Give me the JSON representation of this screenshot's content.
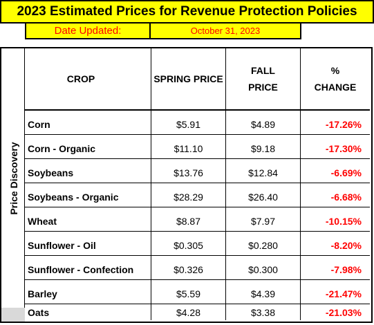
{
  "title": "2023 Estimated Prices for Revenue Protection Policies",
  "date_label": "Date Updated:",
  "date_value": "October 31, 2023",
  "side_label": "Price Discovery",
  "headers": {
    "crop": "CROP",
    "spring": "SPRING PRICE",
    "fall_line1": "FALL",
    "fall_line2": "PRICE",
    "change_line1": "%",
    "change_line2": "CHANGE"
  },
  "rows": [
    {
      "crop": "Corn",
      "spring": "$5.91",
      "fall": "$4.89",
      "change": "-17.26%"
    },
    {
      "crop": "Corn - Organic",
      "spring": "$11.10",
      "fall": "$9.18",
      "change": "-17.30%"
    },
    {
      "crop": "Soybeans",
      "spring": "$13.76",
      "fall": "$12.84",
      "change": "-6.69%"
    },
    {
      "crop": "Soybeans - Organic",
      "spring": "$28.29",
      "fall": "$26.40",
      "change": "-6.68%"
    },
    {
      "crop": "Wheat",
      "spring": "$8.87",
      "fall": "$7.97",
      "change": "-10.15%"
    },
    {
      "crop": "Sunflower - Oil",
      "spring": "$0.305",
      "fall": "$0.280",
      "change": "-8.20%"
    },
    {
      "crop": "Sunflower - Confection",
      "spring": "$0.326",
      "fall": "$0.300",
      "change": "-7.98%"
    },
    {
      "crop": "Barley",
      "spring": "$5.59",
      "fall": "$4.39",
      "change": "-21.47%"
    },
    {
      "crop": "Oats",
      "spring": "$4.28",
      "fall": "$3.38",
      "change": "-21.03%"
    }
  ],
  "colors": {
    "highlight": "#ffff00",
    "date_text": "#ff0000",
    "negative_change": "#ff0000",
    "grey_cell": "#d9d9d9"
  }
}
